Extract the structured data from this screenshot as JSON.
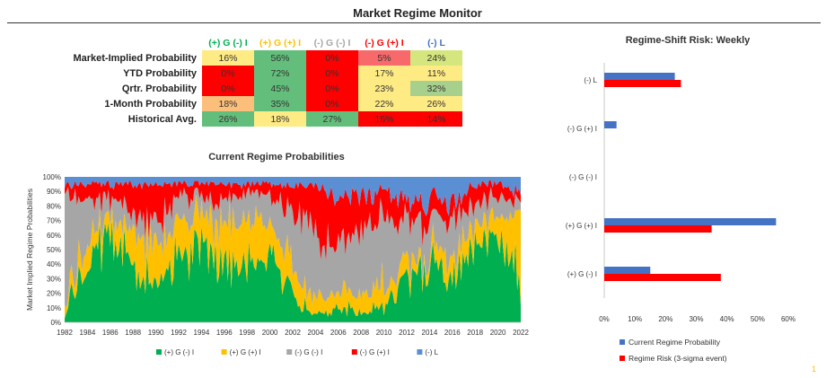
{
  "title": "Market Regime Monitor",
  "colors": {
    "red": "#ff0000",
    "pink": "#f8696b",
    "orange": "#fcbf7b",
    "yellow": "#ffeb84",
    "lime": "#d4e67d",
    "green": "#63be7b",
    "lightgreen": "#a8d08d",
    "green_regime": "#00b050",
    "yellow_regime": "#ffc000",
    "gray_regime": "#a6a6a6",
    "red_regime": "#ff0000",
    "blue_regime": "#5b8fd4",
    "blue_bar": "#4472c4"
  },
  "table": {
    "headers": [
      {
        "label": "(+) G (-) I",
        "color": "#00b050"
      },
      {
        "label": "(+) G (+) I",
        "color": "#ffc000"
      },
      {
        "label": "(-) G (-) I",
        "color": "#a6a6a6"
      },
      {
        "label": "(-) G (+) I",
        "color": "#ff0000"
      },
      {
        "label": "(-) L",
        "color": "#4472c4"
      }
    ],
    "rows": [
      {
        "label": "Market-Implied Probability",
        "cells": [
          {
            "v": "16%",
            "c": "yellow"
          },
          {
            "v": "56%",
            "c": "green"
          },
          {
            "v": "0%",
            "c": "red"
          },
          {
            "v": "5%",
            "c": "pink"
          },
          {
            "v": "24%",
            "c": "lime"
          }
        ]
      },
      {
        "label": "YTD Probability",
        "cells": [
          {
            "v": "0%",
            "c": "red"
          },
          {
            "v": "72%",
            "c": "green"
          },
          {
            "v": "0%",
            "c": "red"
          },
          {
            "v": "17%",
            "c": "yellow"
          },
          {
            "v": "11%",
            "c": "yellow"
          }
        ]
      },
      {
        "label": "Qrtr. Probability",
        "cells": [
          {
            "v": "0%",
            "c": "red"
          },
          {
            "v": "45%",
            "c": "green"
          },
          {
            "v": "0%",
            "c": "red"
          },
          {
            "v": "23%",
            "c": "yellow"
          },
          {
            "v": "32%",
            "c": "lightgreen"
          }
        ]
      },
      {
        "label": "1-Month Probability",
        "cells": [
          {
            "v": "18%",
            "c": "orange"
          },
          {
            "v": "35%",
            "c": "green"
          },
          {
            "v": "0%",
            "c": "red"
          },
          {
            "v": "22%",
            "c": "yellow"
          },
          {
            "v": "26%",
            "c": "yellow"
          }
        ]
      },
      {
        "label": "Historical Avg.",
        "cells": [
          {
            "v": "26%",
            "c": "green"
          },
          {
            "v": "18%",
            "c": "yellow"
          },
          {
            "v": "27%",
            "c": "green"
          },
          {
            "v": "15%",
            "c": "red"
          },
          {
            "v": "14%",
            "c": "red"
          }
        ]
      }
    ]
  },
  "chart_data": [
    {
      "type": "area",
      "stacked": "100%",
      "title": "Current Regime Probabilities",
      "xlabel": "",
      "ylabel": "Market Implied Regime Probabilities",
      "x": [
        "1982",
        "1984",
        "1986",
        "1988",
        "1990",
        "1992",
        "1994",
        "1996",
        "1998",
        "2000",
        "2002",
        "2004",
        "2006",
        "2008",
        "2010",
        "2012",
        "2014",
        "2016",
        "2018",
        "2020",
        "2022"
      ],
      "ylim": [
        0,
        100
      ],
      "yticks": [
        "0%",
        "10%",
        "20%",
        "30%",
        "40%",
        "50%",
        "60%",
        "70%",
        "80%",
        "90%",
        "100%"
      ],
      "series": [
        {
          "name": "(+) G (-) I",
          "color": "#00b050",
          "values": [
            5,
            40,
            60,
            45,
            25,
            40,
            55,
            45,
            40,
            45,
            15,
            5,
            10,
            5,
            10,
            30,
            40,
            35,
            60,
            55,
            30
          ]
        },
        {
          "name": "(+) G (+) I",
          "color": "#ffc000",
          "values": [
            5,
            15,
            10,
            20,
            30,
            25,
            20,
            25,
            30,
            20,
            15,
            10,
            15,
            10,
            15,
            10,
            10,
            15,
            10,
            15,
            50
          ]
        },
        {
          "name": "(-) G (-) I",
          "color": "#a6a6a6",
          "values": [
            80,
            30,
            15,
            10,
            15,
            20,
            10,
            15,
            20,
            20,
            50,
            40,
            30,
            50,
            45,
            25,
            20,
            25,
            15,
            15,
            5
          ]
        },
        {
          "name": "(-) G (+) I",
          "color": "#ff0000",
          "values": [
            5,
            10,
            10,
            20,
            25,
            10,
            10,
            10,
            5,
            10,
            15,
            40,
            30,
            25,
            20,
            15,
            15,
            10,
            10,
            10,
            5
          ]
        },
        {
          "name": "(-) L",
          "color": "#5b8fd4",
          "values": [
            5,
            5,
            5,
            5,
            5,
            5,
            5,
            5,
            5,
            5,
            5,
            5,
            15,
            10,
            10,
            20,
            15,
            15,
            5,
            5,
            10
          ]
        }
      ],
      "legend": "bottom"
    },
    {
      "type": "bar",
      "orientation": "horizontal",
      "title": "Regime-Shift Risk: Weekly",
      "categories": [
        "(-) L",
        "(-) G (+) I",
        "(-) G (-) I",
        "(+) G (+) I",
        "(+) G (-) I"
      ],
      "xticks": [
        "0%",
        "10%",
        "20%",
        "30%",
        "40%",
        "50%",
        "60%"
      ],
      "xlim": [
        0,
        60
      ],
      "series": [
        {
          "name": "Current Regime Probability",
          "color": "#4472c4",
          "values": [
            23,
            4,
            0,
            56,
            15
          ]
        },
        {
          "name": "Regime Risk (3-sigma event)",
          "color": "#ff0000",
          "values": [
            25,
            0,
            0,
            35,
            38
          ]
        }
      ],
      "legend": "bottom"
    }
  ],
  "page_marker": "1"
}
